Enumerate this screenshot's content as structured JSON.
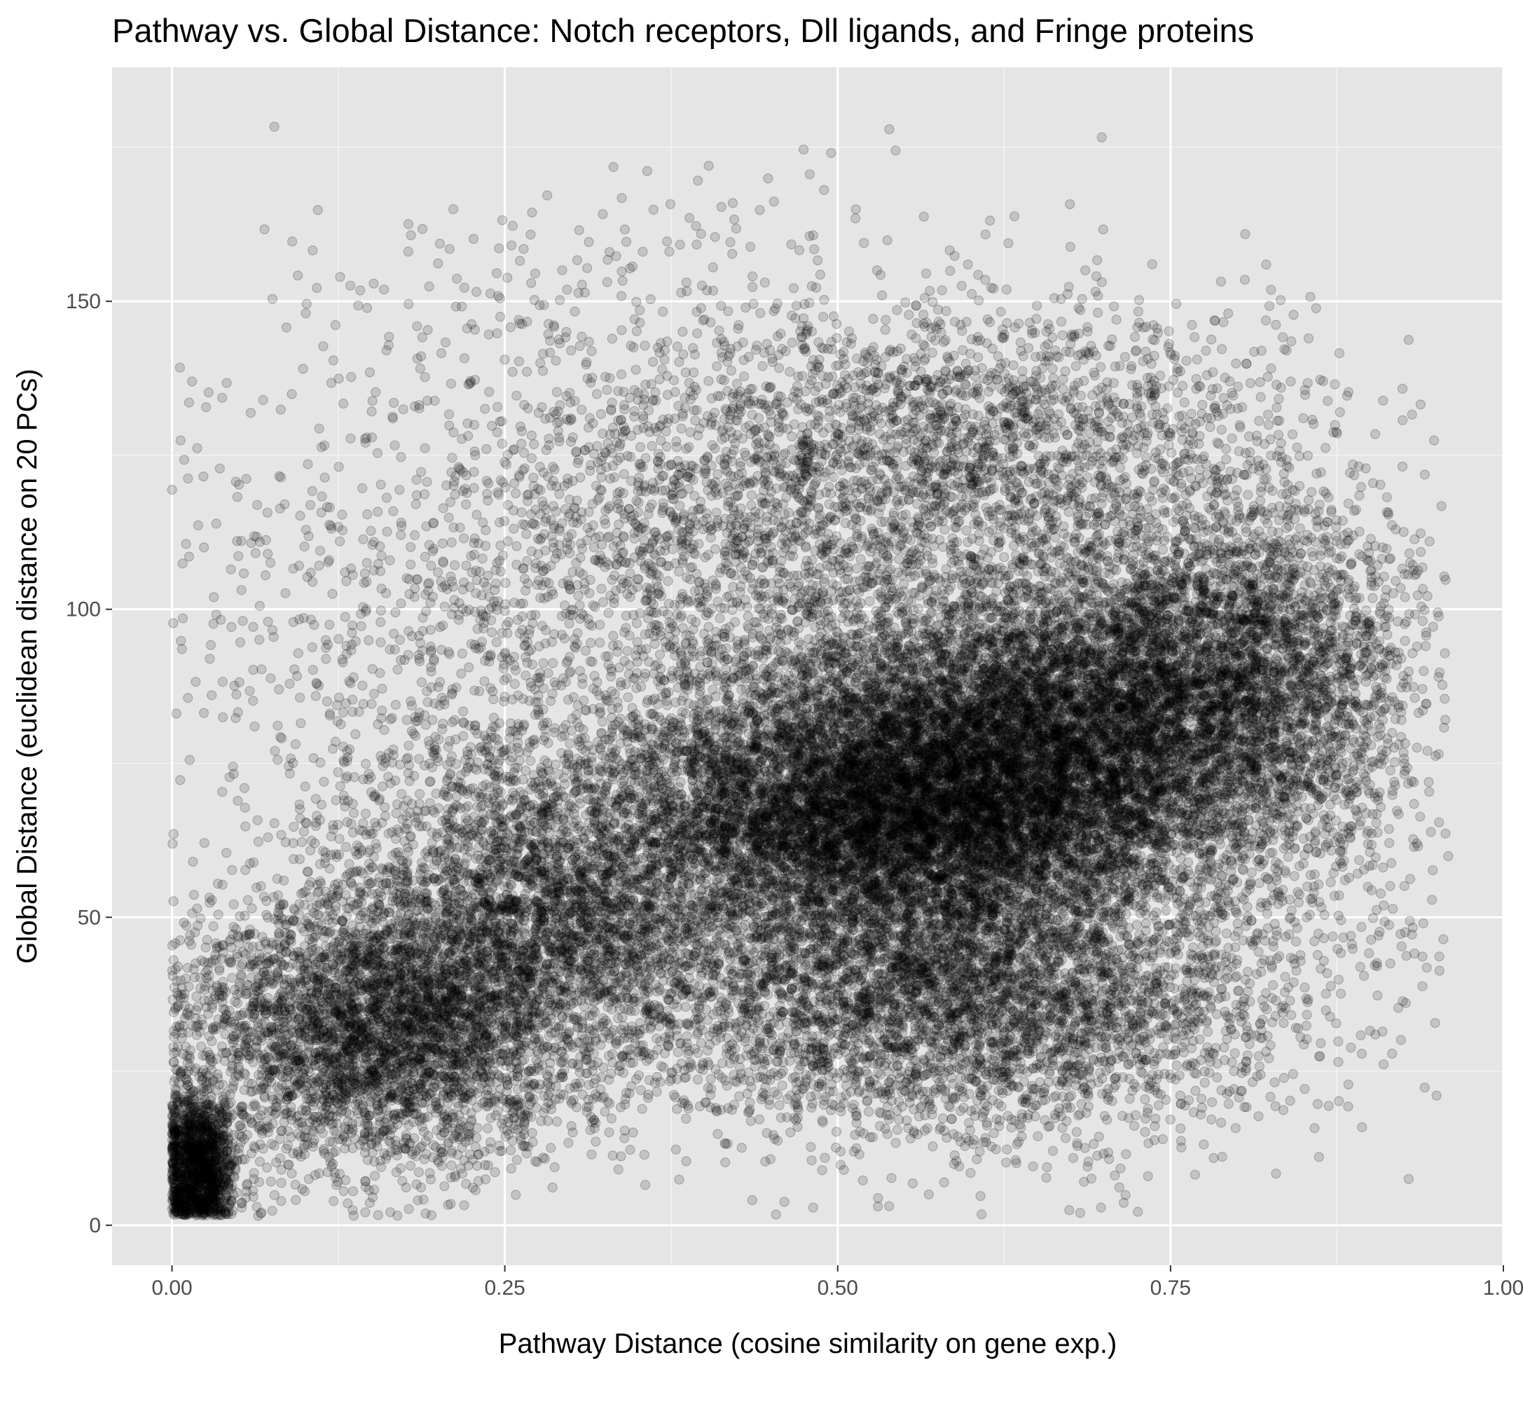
{
  "chart_data": {
    "type": "scatter",
    "title": "Pathway vs. Global Distance: Notch receptors, Dll ligands, and Fringe proteins",
    "xlabel": "Pathway Distance (cosine similarity on gene exp.)",
    "ylabel": "Global Distance (euclidean distance on 20 PCs)",
    "xlim": [
      -0.045,
      1.0
    ],
    "ylim": [
      -6.5,
      188
    ],
    "x_ticks": [
      0.0,
      0.25,
      0.5,
      0.75,
      1.0
    ],
    "x_tick_labels": [
      "0.00",
      "0.25",
      "0.50",
      "0.75",
      "1.00"
    ],
    "y_ticks": [
      0,
      50,
      100,
      150
    ],
    "y_tick_labels": [
      "0",
      "50",
      "100",
      "150"
    ],
    "grid": true,
    "panel_background": "#e5e5e5",
    "grid_color": "#ffffff",
    "point_color": "#000000",
    "point_alpha": 0.15,
    "points_generator": {
      "seed": 20240611,
      "components": [
        {
          "n": 1300,
          "x_mean": 0.02,
          "x_sd": 0.014,
          "y_mean": 10,
          "y_sd": 6
        },
        {
          "n": 4000,
          "x_mean": 0.16,
          "x_sd": 0.075,
          "y_mean": 32,
          "y_sd": 11
        },
        {
          "n": 3600,
          "x_mean": 0.29,
          "x_sd": 0.085,
          "y_mean": 52,
          "y_sd": 14
        },
        {
          "n": 7500,
          "x_mean": 0.52,
          "x_sd": 0.09,
          "y_mean": 68,
          "y_sd": 12
        },
        {
          "n": 7000,
          "x_mean": 0.66,
          "x_sd": 0.09,
          "y_mean": 76,
          "y_sd": 14
        },
        {
          "n": 3000,
          "x_mean": 0.78,
          "x_sd": 0.07,
          "y_mean": 92,
          "y_sd": 13
        },
        {
          "n": 4200,
          "x_mean": 0.6,
          "x_sd": 0.12,
          "y_mean": 36,
          "y_sd": 11
        },
        {
          "n": 2800,
          "x_mean": 0.45,
          "x_sd": 0.15,
          "y_mean": 112,
          "y_sd": 18
        },
        {
          "n": 1500,
          "x_mean": 0.62,
          "x_sd": 0.13,
          "y_mean": 128,
          "y_sd": 10
        },
        {
          "n": 700,
          "x_mean": 0.86,
          "x_sd": 0.05,
          "y_mean": 80,
          "y_sd": 18
        },
        {
          "n": 500,
          "x_mean": 0.2,
          "x_sd": 0.1,
          "y_mean": 95,
          "y_sd": 22
        },
        {
          "n": 200,
          "x_mean": 0.4,
          "x_sd": 0.18,
          "y_mean": 150,
          "y_sd": 12
        }
      ]
    }
  }
}
